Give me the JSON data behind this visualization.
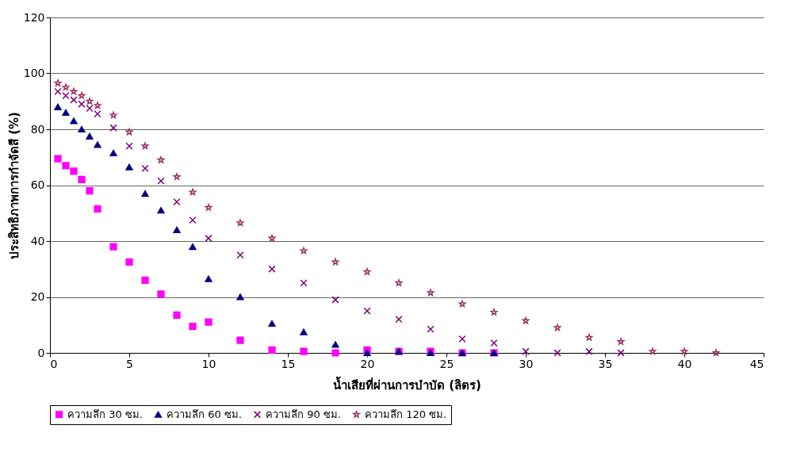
{
  "chart_data": {
    "type": "scatter",
    "xlabel": "น้ำเสียที่ผ่านการบำบัด (ลิตร)",
    "ylabel": "ประสิทธิภาพการกำจัดสี (%)",
    "xlim": [
      0,
      45
    ],
    "xticks": [
      0,
      5,
      10,
      15,
      20,
      25,
      30,
      35,
      40,
      45
    ],
    "ylim": [
      0,
      120
    ],
    "yticks": [
      0,
      20,
      40,
      60,
      80,
      100,
      120
    ],
    "grid": "y",
    "legend": "bottom",
    "series": [
      {
        "name": "ความลึก 30 ซม.",
        "color": "#ff00ff",
        "marker": "square",
        "x": [
          0.5,
          1,
          1.5,
          2,
          2.5,
          3,
          4,
          5,
          6,
          7,
          8,
          9,
          10,
          12,
          14,
          16,
          18,
          20,
          22,
          24,
          26,
          28
        ],
        "values": [
          69.5,
          67,
          65,
          62,
          58,
          51.5,
          38,
          32.5,
          26,
          21,
          13.5,
          9.5,
          11,
          4.5,
          1,
          0.5,
          0,
          1,
          0.5,
          0.5,
          0,
          0
        ]
      },
      {
        "name": "ความลึก 60 ซม.",
        "color": "#000080",
        "marker": "triangle",
        "x": [
          0.5,
          1,
          1.5,
          2,
          2.5,
          3,
          4,
          5,
          6,
          7,
          8,
          9,
          10,
          12,
          14,
          16,
          18,
          20,
          22,
          24,
          26,
          28
        ],
        "values": [
          88,
          86,
          83,
          80,
          77.5,
          74.5,
          71.5,
          66.5,
          57,
          51,
          44,
          38,
          26.5,
          20,
          10.5,
          7.5,
          3,
          0,
          0.5,
          0,
          0,
          0
        ]
      },
      {
        "name": "ความลึก 90 ซม.",
        "color": "#800080",
        "marker": "cross",
        "x": [
          0.5,
          1,
          1.5,
          2,
          2.5,
          3,
          4,
          5,
          6,
          7,
          8,
          9,
          10,
          12,
          14,
          16,
          18,
          20,
          22,
          24,
          26,
          28,
          30,
          32,
          34,
          36
        ],
        "values": [
          93.5,
          92,
          90.5,
          89,
          87.5,
          85.5,
          80.5,
          74,
          66,
          61.5,
          54,
          47.5,
          41,
          35,
          30,
          25,
          19,
          15,
          12,
          8.5,
          5,
          3.5,
          0.5,
          0,
          0.5,
          0
        ]
      },
      {
        "name": "ความลึก 120 ซม.",
        "color": "#993366",
        "marker": "star",
        "x": [
          0.5,
          1,
          1.5,
          2,
          2.5,
          3,
          4,
          5,
          6,
          7,
          8,
          9,
          10,
          12,
          14,
          16,
          18,
          20,
          22,
          24,
          26,
          28,
          30,
          32,
          34,
          36,
          38,
          40,
          42
        ],
        "values": [
          96.5,
          95,
          93.5,
          92,
          90,
          88.5,
          85,
          79,
          74,
          69,
          63,
          57.5,
          52,
          46.5,
          41,
          36.5,
          32.5,
          29,
          25,
          21.5,
          17.5,
          14.5,
          11.5,
          9,
          5.5,
          4,
          0.5,
          0.5,
          0
        ]
      }
    ]
  }
}
